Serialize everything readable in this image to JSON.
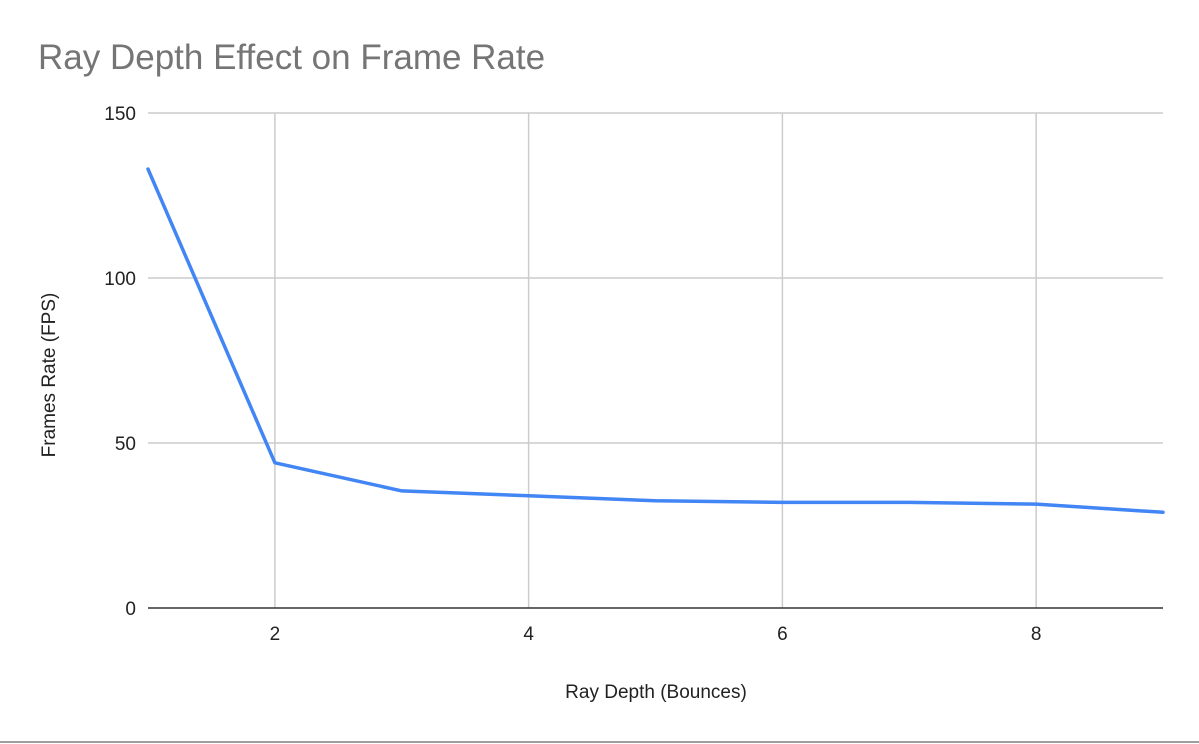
{
  "chart_data": {
    "type": "line",
    "title": "Ray Depth Effect on Frame Rate",
    "xlabel": "Ray Depth (Bounces)",
    "ylabel": "Frames Rate (FPS)",
    "xlim": [
      1,
      9
    ],
    "ylim": [
      0,
      150
    ],
    "xticks": [
      2,
      4,
      6,
      8
    ],
    "yticks": [
      0,
      50,
      100,
      150
    ],
    "grid": true,
    "legend": "none",
    "series": [
      {
        "color": "#4285f4",
        "x": [
          1,
          2,
          3,
          4,
          5,
          6,
          7,
          8,
          9
        ],
        "values": [
          133,
          44,
          35.5,
          34,
          32.5,
          32,
          32,
          31.5,
          29
        ]
      }
    ]
  }
}
